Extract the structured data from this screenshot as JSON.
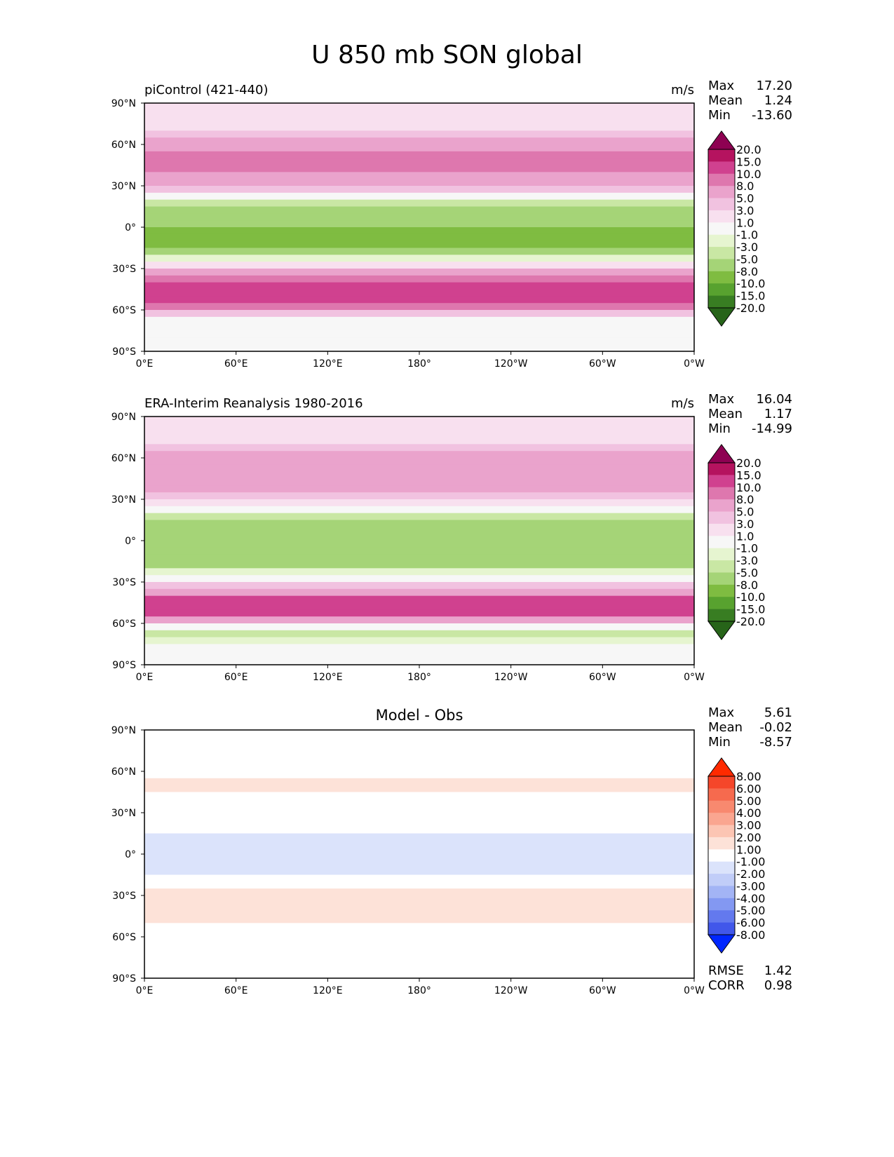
{
  "title": "U 850 mb SON global",
  "chart_data": [
    {
      "type": "heatmap",
      "title": "piControl (421-440)",
      "units": "m/s",
      "stats": {
        "max": "17.20",
        "mean": "1.24",
        "min": "-13.60"
      },
      "stat_labels": {
        "max": "Max",
        "mean": "Mean",
        "min": "Min"
      },
      "x_ticks": [
        "0°E",
        "60°E",
        "120°E",
        "180°",
        "120°W",
        "60°W",
        "0°W"
      ],
      "y_ticks": [
        "90°N",
        "60°N",
        "30°N",
        "0°",
        "30°S",
        "60°S",
        "90°S"
      ],
      "xlim": [
        0,
        360
      ],
      "ylim": [
        -90,
        90
      ],
      "colorbar": {
        "levels": [
          "20.0",
          "15.0",
          "10.0",
          "8.0",
          "5.0",
          "3.0",
          "1.0",
          "-1.0",
          "-3.0",
          "-5.0",
          "-8.0",
          "-10.0",
          "-15.0",
          "-20.0"
        ],
        "colors": [
          "#8e0152",
          "#b5135f",
          "#d0418f",
          "#de77ae",
          "#eaa3cc",
          "#f1c2e0",
          "#f8e0ef",
          "#f7f7f7",
          "#e6f5d0",
          "#c9e7a4",
          "#a5d477",
          "#7fbc41",
          "#58a22f",
          "#387d22",
          "#276419"
        ]
      },
      "zonal_profile": {
        "lat": [
          85,
          70,
          55,
          45,
          30,
          15,
          0,
          -15,
          -30,
          -45,
          -55,
          -65,
          -80
        ],
        "u": [
          1,
          3,
          8,
          10,
          5,
          -6,
          -8,
          -9,
          3,
          15,
          12,
          1,
          0
        ]
      }
    },
    {
      "type": "heatmap",
      "title": "ERA-Interim Reanalysis 1980-2016",
      "units": "m/s",
      "stats": {
        "max": "16.04",
        "mean": "1.17",
        "min": "-14.99"
      },
      "stat_labels": {
        "max": "Max",
        "mean": "Mean",
        "min": "Min"
      },
      "x_ticks": [
        "0°E",
        "60°E",
        "120°E",
        "180°",
        "120°W",
        "60°W",
        "0°W"
      ],
      "y_ticks": [
        "90°N",
        "60°N",
        "30°N",
        "0°",
        "30°S",
        "60°S",
        "90°S"
      ],
      "xlim": [
        0,
        360
      ],
      "ylim": [
        -90,
        90
      ],
      "colorbar": {
        "levels": [
          "20.0",
          "15.0",
          "10.0",
          "8.0",
          "5.0",
          "3.0",
          "1.0",
          "-1.0",
          "-3.0",
          "-5.0",
          "-8.0",
          "-10.0",
          "-15.0",
          "-20.0"
        ],
        "colors": [
          "#8e0152",
          "#b5135f",
          "#d0418f",
          "#de77ae",
          "#eaa3cc",
          "#f1c2e0",
          "#f8e0ef",
          "#f7f7f7",
          "#e6f5d0",
          "#c9e7a4",
          "#a5d477",
          "#7fbc41",
          "#58a22f",
          "#387d22",
          "#276419"
        ]
      },
      "zonal_profile": {
        "lat": [
          85,
          70,
          55,
          45,
          30,
          15,
          0,
          -15,
          -30,
          -45,
          -55,
          -65,
          -80
        ],
        "u": [
          1,
          3,
          7,
          8,
          4,
          -5,
          -6,
          -7,
          2,
          13,
          11,
          -4,
          0
        ]
      }
    },
    {
      "type": "heatmap",
      "title": "Model - Obs",
      "units": "",
      "stats": {
        "max": "5.61",
        "mean": "-0.02",
        "min": "-8.57"
      },
      "stat_labels": {
        "max": "Max",
        "mean": "Mean",
        "min": "Min"
      },
      "extra_stats": [
        {
          "label": "RMSE",
          "value": "1.42"
        },
        {
          "label": "CORR",
          "value": "0.98"
        }
      ],
      "x_ticks": [
        "0°E",
        "60°E",
        "120°E",
        "180°",
        "120°W",
        "60°W",
        "0°W"
      ],
      "y_ticks": [
        "90°N",
        "60°N",
        "30°N",
        "0°",
        "30°S",
        "60°S",
        "90°S"
      ],
      "xlim": [
        0,
        360
      ],
      "ylim": [
        -90,
        90
      ],
      "colorbar": {
        "levels": [
          "8.00",
          "6.00",
          "5.00",
          "4.00",
          "3.00",
          "2.00",
          "1.00",
          "-1.00",
          "-2.00",
          "-3.00",
          "-4.00",
          "-5.00",
          "-6.00",
          "-8.00"
        ],
        "colors": [
          "#ff2a00",
          "#f5462a",
          "#f66a4e",
          "#f8896f",
          "#faa690",
          "#fcc5b3",
          "#fde2d8",
          "#ffffff",
          "#dbe3fb",
          "#c1cdf8",
          "#a3b4f5",
          "#8398f2",
          "#6379ee",
          "#4157ea",
          "#0026ff"
        ]
      },
      "zonal_profile": {
        "lat": [
          85,
          70,
          55,
          45,
          30,
          15,
          0,
          -15,
          -30,
          -45,
          -55,
          -65,
          -80
        ],
        "u": [
          0,
          0,
          1,
          1,
          0.5,
          -1,
          -1.5,
          -1,
          1.5,
          2,
          0.5,
          1,
          0
        ]
      }
    }
  ]
}
